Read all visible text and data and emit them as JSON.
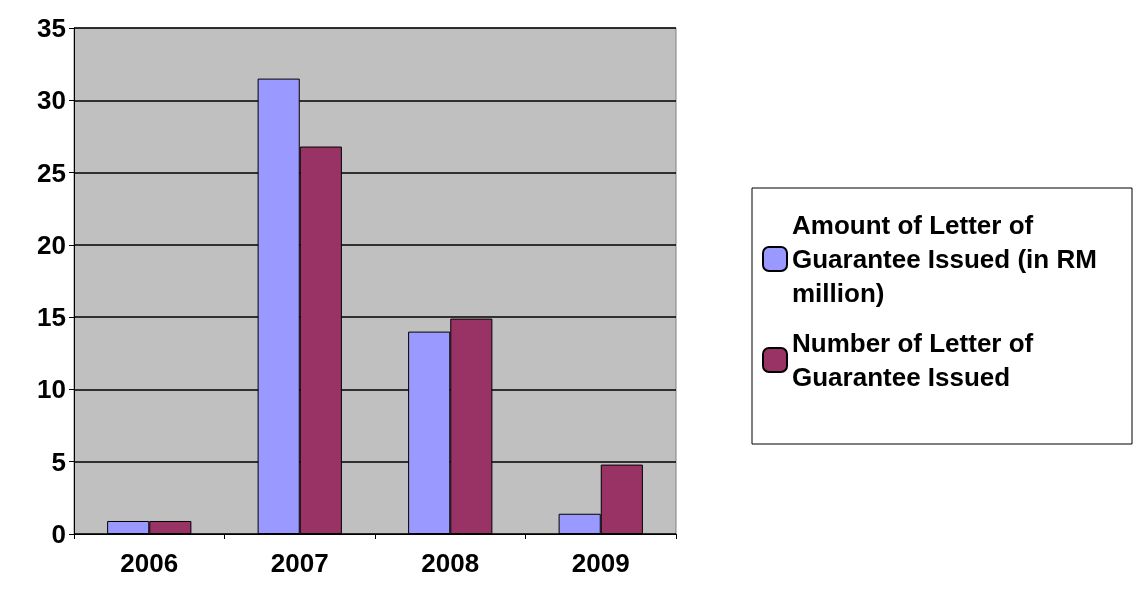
{
  "chart_data": {
    "type": "bar",
    "categories": [
      "2006",
      "2007",
      "2008",
      "2009"
    ],
    "series": [
      {
        "name": "Amount of Letter of Guarantee Issued (in RM million)",
        "color": "#9999ff",
        "values": [
          0.9,
          31.5,
          14,
          1.4
        ]
      },
      {
        "name": "Number of Letter of Guarantee Issued",
        "color": "#993366",
        "values": [
          0.9,
          26.8,
          14.9,
          4.8
        ]
      }
    ],
    "ylim": [
      0,
      35
    ],
    "yticks": [
      0,
      5,
      10,
      15,
      20,
      25,
      30,
      35
    ],
    "grid": "y",
    "legend": "right"
  }
}
